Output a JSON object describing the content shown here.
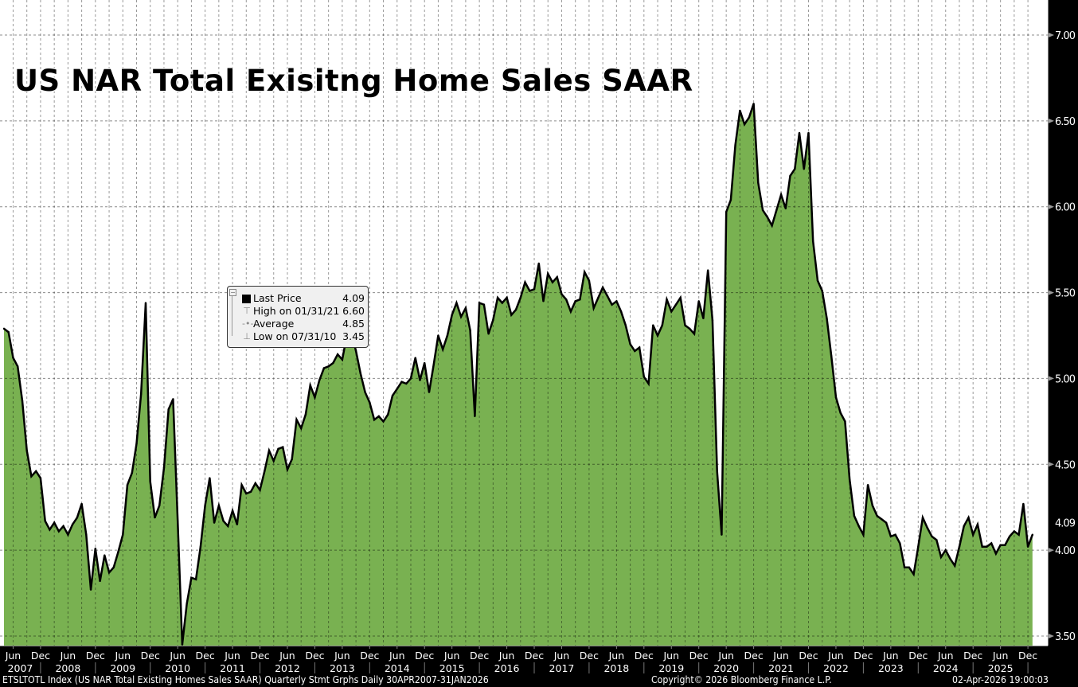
{
  "chart_data": {
    "type": "area",
    "title": "US NAR Total Exisitng Home Sales SAAR",
    "frequency": "monthly",
    "x_range": [
      "Apr 2007",
      "Jan 2026"
    ],
    "values": [
      5.29,
      5.27,
      5.12,
      5.07,
      4.87,
      4.58,
      4.43,
      4.46,
      4.42,
      4.17,
      4.12,
      4.16,
      4.11,
      4.14,
      4.09,
      4.15,
      4.19,
      4.27,
      4.09,
      3.77,
      4.01,
      3.82,
      3.97,
      3.87,
      3.9,
      3.99,
      4.09,
      4.38,
      4.45,
      4.62,
      4.91,
      5.44,
      4.4,
      4.19,
      4.26,
      4.48,
      4.82,
      4.88,
      4.17,
      3.45,
      3.69,
      3.84,
      3.83,
      4.02,
      4.26,
      4.42,
      4.16,
      4.26,
      4.17,
      4.14,
      4.23,
      4.15,
      4.38,
      4.33,
      4.34,
      4.39,
      4.35,
      4.46,
      4.58,
      4.52,
      4.59,
      4.6,
      4.47,
      4.53,
      4.76,
      4.71,
      4.79,
      4.96,
      4.89,
      4.99,
      5.06,
      5.07,
      5.09,
      5.14,
      5.11,
      5.25,
      5.27,
      5.16,
      5.03,
      4.92,
      4.86,
      4.76,
      4.78,
      4.75,
      4.79,
      4.9,
      4.94,
      4.98,
      4.97,
      5.0,
      5.12,
      4.99,
      5.09,
      4.92,
      5.08,
      5.25,
      5.17,
      5.25,
      5.37,
      5.44,
      5.36,
      5.41,
      5.28,
      4.78,
      5.44,
      5.43,
      5.26,
      5.34,
      5.47,
      5.44,
      5.47,
      5.37,
      5.4,
      5.47,
      5.56,
      5.51,
      5.52,
      5.67,
      5.45,
      5.61,
      5.56,
      5.59,
      5.49,
      5.46,
      5.39,
      5.45,
      5.46,
      5.62,
      5.57,
      5.41,
      5.47,
      5.53,
      5.48,
      5.43,
      5.45,
      5.39,
      5.31,
      5.2,
      5.16,
      5.18,
      5.01,
      4.97,
      5.31,
      5.25,
      5.31,
      5.46,
      5.39,
      5.43,
      5.47,
      5.31,
      5.29,
      5.26,
      5.45,
      5.35,
      5.63,
      5.34,
      4.46,
      4.09,
      5.97,
      6.04,
      6.36,
      6.56,
      6.48,
      6.52,
      6.6,
      6.14,
      5.98,
      5.94,
      5.89,
      5.98,
      6.07,
      5.99,
      6.18,
      6.22,
      6.43,
      6.22,
      6.43,
      5.8,
      5.57,
      5.51,
      5.35,
      5.13,
      4.89,
      4.8,
      4.75,
      4.41,
      4.2,
      4.14,
      4.09,
      4.38,
      4.26,
      4.2,
      4.18,
      4.16,
      4.08,
      4.09,
      4.04,
      3.9,
      3.9,
      3.86,
      4.02,
      4.19,
      4.13,
      4.08,
      4.06,
      3.96,
      4.0,
      3.95,
      3.91,
      4.02,
      4.14,
      4.19,
      4.09,
      4.15,
      4.02,
      4.02,
      4.04,
      3.98,
      4.03,
      4.03,
      4.08,
      4.11,
      4.09,
      4.27,
      4.02,
      4.09
    ],
    "ylim": [
      3.5,
      7.0
    ],
    "y_ticks": [
      "3.50",
      "4.00",
      "4.50",
      "5.00",
      "5.50",
      "6.00",
      "6.50",
      "7.00"
    ],
    "y_axis_position": "right",
    "last_value_label": "4.09",
    "x_month_labels": [
      "Jun",
      "Dec",
      "Jun",
      "Dec",
      "Jun",
      "Dec",
      "Jun",
      "Dec",
      "Jun",
      "Dec",
      "Jun",
      "Dec",
      "Jun",
      "Dec",
      "Jun",
      "Dec",
      "Jun",
      "Dec",
      "Jun",
      "Dec",
      "Jun",
      "Dec",
      "Jun",
      "Dec",
      "Jun",
      "Dec",
      "Jun",
      "Dec",
      "Jun",
      "Dec",
      "Jun",
      "Dec",
      "Jun",
      "Dec",
      "Jun",
      "Dec",
      "Jun",
      "Dec"
    ],
    "x_year_labels": [
      "2007",
      "2008",
      "2009",
      "2010",
      "2011",
      "2012",
      "2013",
      "2014",
      "2015",
      "2016",
      "2017",
      "2018",
      "2019",
      "2020",
      "2021",
      "2022",
      "2023",
      "2024",
      "2025"
    ],
    "grid": true,
    "fill_color": "#79b151",
    "line_color": "#000000",
    "legend": {
      "placement": "upper-left",
      "rows": [
        {
          "label": "Last Price",
          "value": "4.09"
        },
        {
          "label": "High on 01/31/21",
          "value": "6.60"
        },
        {
          "label": "Average",
          "value": "4.85"
        },
        {
          "label": "Low on 07/31/10",
          "value": "3.45"
        }
      ]
    }
  },
  "footer": {
    "source": "ETSLTOTL Index (US NAR Total Existing Homes Sales SAAR) Quarterly Stmt Grphs Daily 30APR2007-31JAN2026",
    "copyright": "Copyright© 2026 Bloomberg Finance L.P.",
    "timestamp": "02-Apr-2026 19:00:03"
  }
}
